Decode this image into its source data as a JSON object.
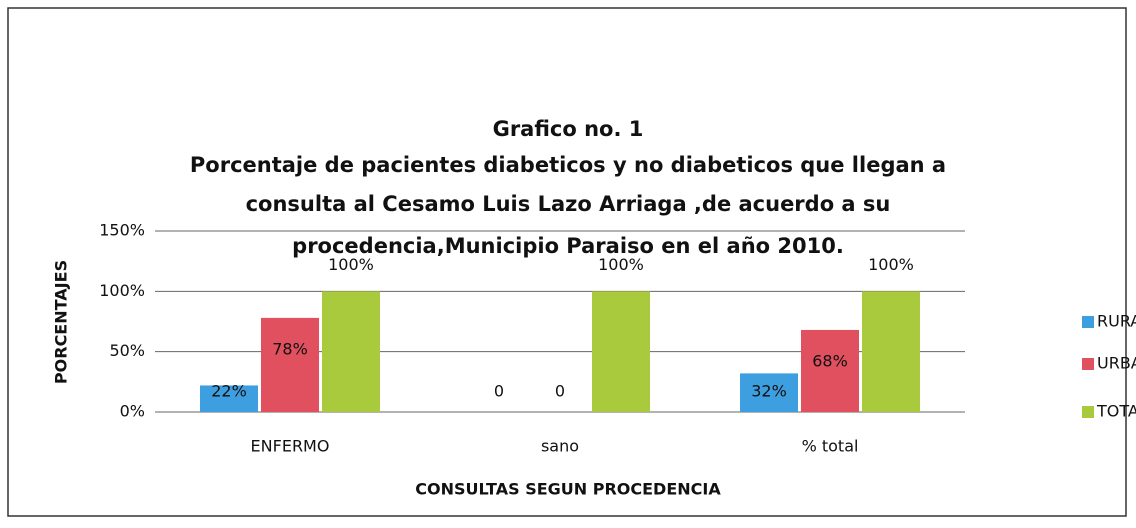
{
  "chart_data": {
    "type": "bar",
    "title": "Grafico no. 1",
    "subtitle": [
      "Porcentaje de pacientes diabeticos y no diabeticos que llegan a",
      "consulta al Cesamo Luis Lazo Arriaga ,de acuerdo a su",
      "procedencia,Municipio Paraiso en el año 2010."
    ],
    "x_label": "CONSULTAS SEGUN PROCEDENCIA",
    "y_label": "PORCENTAJES",
    "categories": [
      "ENFERMO",
      "sano",
      "% total"
    ],
    "series": [
      {
        "name": "RURAL",
        "color": "#3d9fe0",
        "values": [
          22,
          0,
          32
        ],
        "value_labels": [
          "22%",
          "0",
          "32%"
        ]
      },
      {
        "name": "URBANA",
        "color": "#e0505f",
        "values": [
          78,
          0,
          68
        ],
        "value_labels": [
          "78%",
          "0",
          "68%"
        ]
      },
      {
        "name": "TOTAL",
        "color": "#a9ca3c",
        "values": [
          100,
          100,
          100
        ],
        "value_labels": [
          "100%",
          "100%",
          "100%"
        ]
      }
    ],
    "ylim": [
      0,
      150
    ],
    "yticks": [
      {
        "value": 0,
        "label": "0%"
      },
      {
        "value": 50,
        "label": "50%"
      },
      {
        "value": 100,
        "label": "100%"
      },
      {
        "value": 150,
        "label": "150%"
      }
    ],
    "grid": true,
    "legend": "right"
  }
}
